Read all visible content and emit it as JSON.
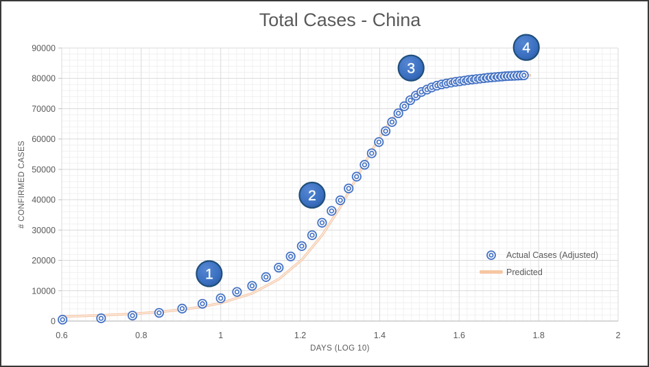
{
  "chart_data": {
    "type": "scatter",
    "title": "Total Cases - China",
    "xlabel": "DAYS (LOG 10)",
    "ylabel": "# CONFIRMED CASES",
    "xlim": [
      0.6,
      2.0
    ],
    "ylim": [
      0,
      90000
    ],
    "x_ticks": {
      "values": [
        0.6,
        0.8,
        1.0,
        1.2,
        1.4,
        1.6,
        1.8,
        2.0
      ],
      "labels": [
        "0.6",
        "0.8",
        "1",
        "1.2",
        "1.4",
        "1.6",
        "1.8",
        "2"
      ],
      "minor_step": 0.02
    },
    "y_ticks": {
      "values": [
        0,
        10000,
        20000,
        30000,
        40000,
        50000,
        60000,
        70000,
        80000,
        90000
      ],
      "labels": [
        "0",
        "10000",
        "20000",
        "30000",
        "40000",
        "50000",
        "60000",
        "70000",
        "80000",
        "90000"
      ],
      "minor_step": 2000
    },
    "grid": "major-and-minor",
    "legend_position": "inside-right",
    "series": [
      {
        "name": "Actual Cases (Adjusted)",
        "type": "scatter",
        "marker": "double-circle",
        "x": [
          0.602,
          0.699,
          0.778,
          0.845,
          0.903,
          0.954,
          1.0,
          1.041,
          1.079,
          1.114,
          1.146,
          1.176,
          1.204,
          1.23,
          1.255,
          1.279,
          1.301,
          1.322,
          1.342,
          1.362,
          1.38,
          1.398,
          1.415,
          1.431,
          1.447,
          1.462,
          1.477,
          1.491,
          1.505,
          1.519,
          1.531,
          1.544,
          1.556,
          1.568,
          1.58,
          1.591,
          1.602,
          1.613,
          1.623,
          1.633,
          1.643,
          1.653,
          1.663,
          1.672,
          1.681,
          1.69,
          1.699,
          1.708,
          1.716,
          1.724,
          1.732,
          1.74,
          1.748,
          1.756,
          1.763
        ],
        "y": [
          450,
          900,
          1800,
          2700,
          4100,
          5700,
          7500,
          9600,
          11600,
          14500,
          17600,
          21300,
          24700,
          28300,
          32400,
          36300,
          39800,
          43700,
          47600,
          51500,
          55300,
          59000,
          62600,
          65600,
          68500,
          70800,
          72800,
          74300,
          75500,
          76300,
          77000,
          77600,
          78000,
          78300,
          78600,
          78850,
          79050,
          79250,
          79450,
          79600,
          79750,
          79900,
          80050,
          80200,
          80300,
          80400,
          80500,
          80600,
          80700,
          80750,
          80800,
          80850,
          80900,
          80950,
          81000
        ]
      },
      {
        "name": "Predicted",
        "type": "line",
        "x": [
          0.602,
          0.699,
          0.778,
          0.845,
          0.903,
          0.954,
          1.0,
          1.079,
          1.146,
          1.204,
          1.255,
          1.301,
          1.342,
          1.38,
          1.415,
          1.447,
          1.477,
          1.505,
          1.531,
          1.556,
          1.58,
          1.602,
          1.643,
          1.681,
          1.716,
          1.748,
          1.778
        ],
        "y": [
          1480,
          1870,
          2370,
          2980,
          3760,
          4720,
          5900,
          9120,
          13790,
          20170,
          28260,
          37590,
          47240,
          56160,
          63600,
          69270,
          73320,
          76070,
          77880,
          79040,
          79780,
          80240,
          80710,
          80890,
          80960,
          80985,
          80995
        ]
      }
    ],
    "annotations": [
      {
        "label": "1",
        "x": 0.971,
        "y": 15600
      },
      {
        "label": "2",
        "x": 1.23,
        "y": 41500
      },
      {
        "label": "3",
        "x": 1.479,
        "y": 83400
      },
      {
        "label": "4",
        "x": 1.769,
        "y": 90200
      }
    ],
    "style": {
      "marker_color": "#4472c4",
      "line_color": "#f2ba93",
      "line_core_color": "#fdf0e6",
      "callout_fill": "#3a6fc0",
      "callout_border": "#1f4e79",
      "callout_text_color": "#ffffff",
      "grid_major": "#d9d9d9",
      "grid_minor": "#f0f0f0",
      "axis_line": "#bfbfbf",
      "text_color": "#595959"
    }
  }
}
